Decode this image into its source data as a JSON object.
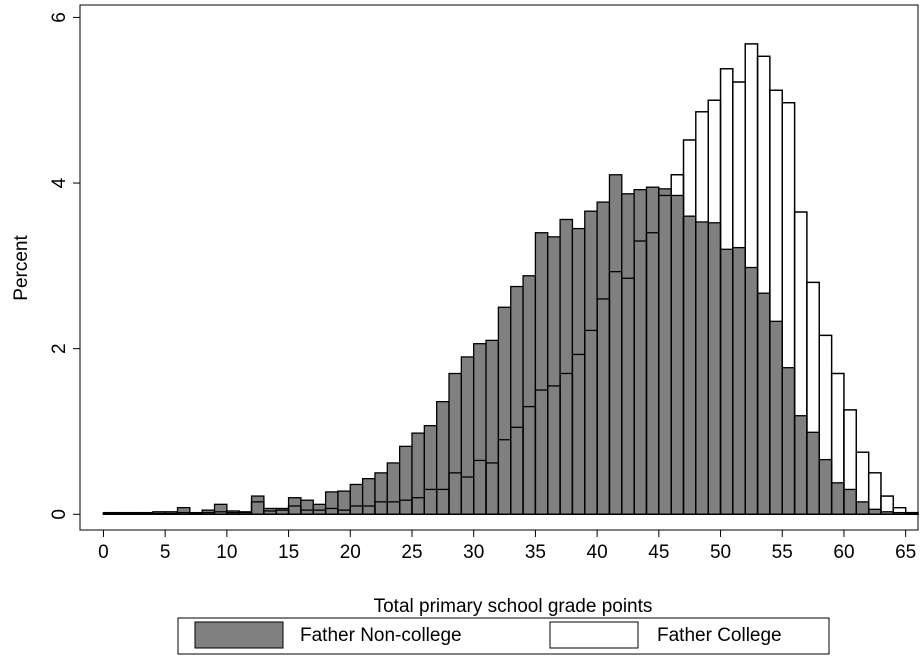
{
  "chart_data": {
    "type": "histogram",
    "x_label": "Total primary school grade points",
    "y_label": "Percent",
    "bins": [
      0,
      1,
      2,
      3,
      4,
      5,
      6,
      7,
      8,
      9,
      10,
      11,
      12,
      13,
      14,
      15,
      16,
      17,
      18,
      19,
      20,
      21,
      22,
      23,
      24,
      25,
      26,
      27,
      28,
      29,
      30,
      31,
      32,
      33,
      34,
      35,
      36,
      37,
      38,
      39,
      40,
      41,
      42,
      43,
      44,
      45,
      46,
      47,
      48,
      49,
      50,
      51,
      52,
      53,
      54,
      55,
      56,
      57,
      58,
      59,
      60,
      61,
      62,
      63,
      64,
      65,
      66
    ],
    "series": [
      {
        "name": "Father College",
        "color": "#ffffff",
        "values": [
          0.01,
          0.01,
          0.01,
          0.01,
          0.01,
          0.01,
          0.02,
          0.01,
          0.02,
          0.03,
          0.02,
          0.02,
          0.15,
          0.04,
          0.05,
          0.1,
          0.05,
          0.05,
          0.07,
          0.05,
          0.1,
          0.1,
          0.15,
          0.15,
          0.17,
          0.2,
          0.3,
          0.3,
          0.5,
          0.45,
          0.65,
          0.62,
          0.9,
          1.05,
          1.3,
          1.5,
          1.55,
          1.7,
          1.93,
          2.22,
          2.6,
          2.93,
          2.85,
          3.3,
          3.4,
          3.85,
          4.1,
          4.52,
          4.86,
          5.0,
          5.38,
          5.22,
          5.68,
          5.53,
          5.12,
          4.97,
          3.65,
          2.8,
          2.16,
          1.7,
          1.26,
          0.75,
          0.5,
          0.22,
          0.08,
          0.02
        ]
      },
      {
        "name": "Father Non-college",
        "color": "#808080",
        "values": [
          0.02,
          0.02,
          0.02,
          0.02,
          0.03,
          0.03,
          0.08,
          0.02,
          0.05,
          0.12,
          0.04,
          0.03,
          0.22,
          0.07,
          0.07,
          0.2,
          0.17,
          0.12,
          0.27,
          0.28,
          0.36,
          0.43,
          0.5,
          0.62,
          0.82,
          0.98,
          1.07,
          1.36,
          1.7,
          1.9,
          2.06,
          2.1,
          2.5,
          2.75,
          2.88,
          3.4,
          3.35,
          3.56,
          3.45,
          3.66,
          3.77,
          4.1,
          3.87,
          3.92,
          3.95,
          3.93,
          3.85,
          3.6,
          3.53,
          3.52,
          3.2,
          3.22,
          2.98,
          2.67,
          2.33,
          1.77,
          1.19,
          0.99,
          0.66,
          0.38,
          0.3,
          0.15,
          0.06,
          0.03,
          0.02,
          0.01
        ]
      }
    ],
    "xlim": [
      -1.9,
      66
    ],
    "xticks": [
      0,
      5,
      10,
      15,
      20,
      25,
      30,
      35,
      40,
      45,
      50,
      55,
      60,
      65
    ],
    "ylim": [
      -0.19,
      6.15
    ],
    "yticks": [
      0,
      2,
      4,
      6
    ]
  }
}
